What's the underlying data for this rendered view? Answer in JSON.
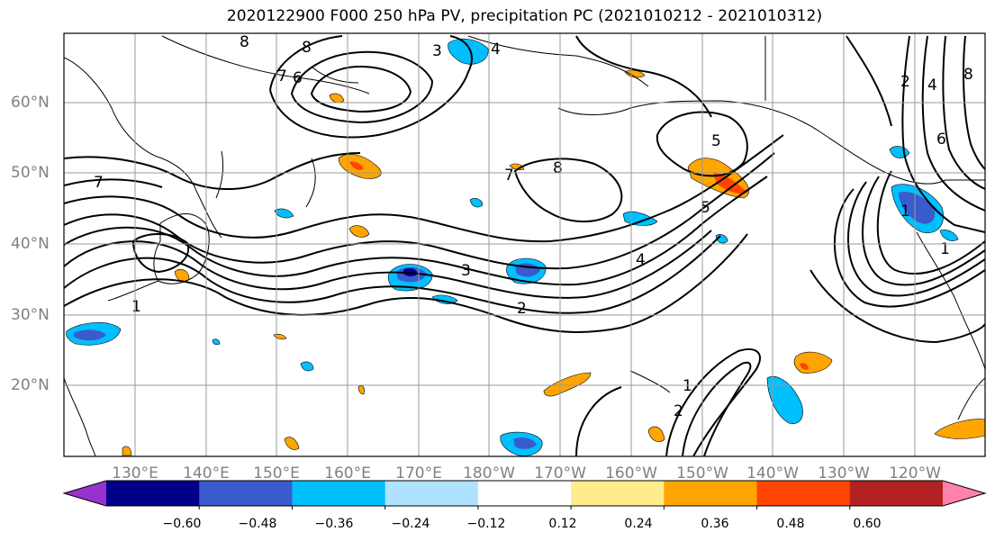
{
  "title": "2020122900 F000 250 hPa PV, precipitation PC (2021010212 - 2021010312)",
  "map": {
    "lat_labels": [
      "60°N",
      "50°N",
      "40°N",
      "30°N",
      "20°N"
    ],
    "lon_labels": [
      "130°E",
      "140°E",
      "150°E",
      "160°E",
      "170°E",
      "180°W",
      "170°W",
      "160°W",
      "150°W",
      "140°W",
      "130°W",
      "120°W"
    ],
    "pv_contour_labels": [
      "8",
      "8",
      "3",
      "4",
      "6",
      "7",
      "7",
      "1",
      "2",
      "3",
      "4",
      "5",
      "5",
      "8",
      "7",
      "1",
      "2",
      "1",
      "2",
      "4",
      "8",
      "6",
      "1"
    ]
  },
  "colorbar": {
    "colors": [
      "#9932CC",
      "#00008B",
      "#3A5BCE",
      "#00BFFF",
      "#B0E2FF",
      "#FFFFFF",
      "#FFEC8B",
      "#FFA500",
      "#FF4500",
      "#B22222",
      "#FF82AB"
    ],
    "tick_labels": [
      "−0.60",
      "−0.48",
      "−0.36",
      "−0.24",
      "−0.12",
      "0.12",
      "0.24",
      "0.36",
      "0.48",
      "0.60"
    ],
    "extend": "both"
  },
  "colors": {
    "contour": "#000000",
    "grid": "#9a9a9a",
    "coast": "#000000",
    "axis_label": "#808080"
  }
}
